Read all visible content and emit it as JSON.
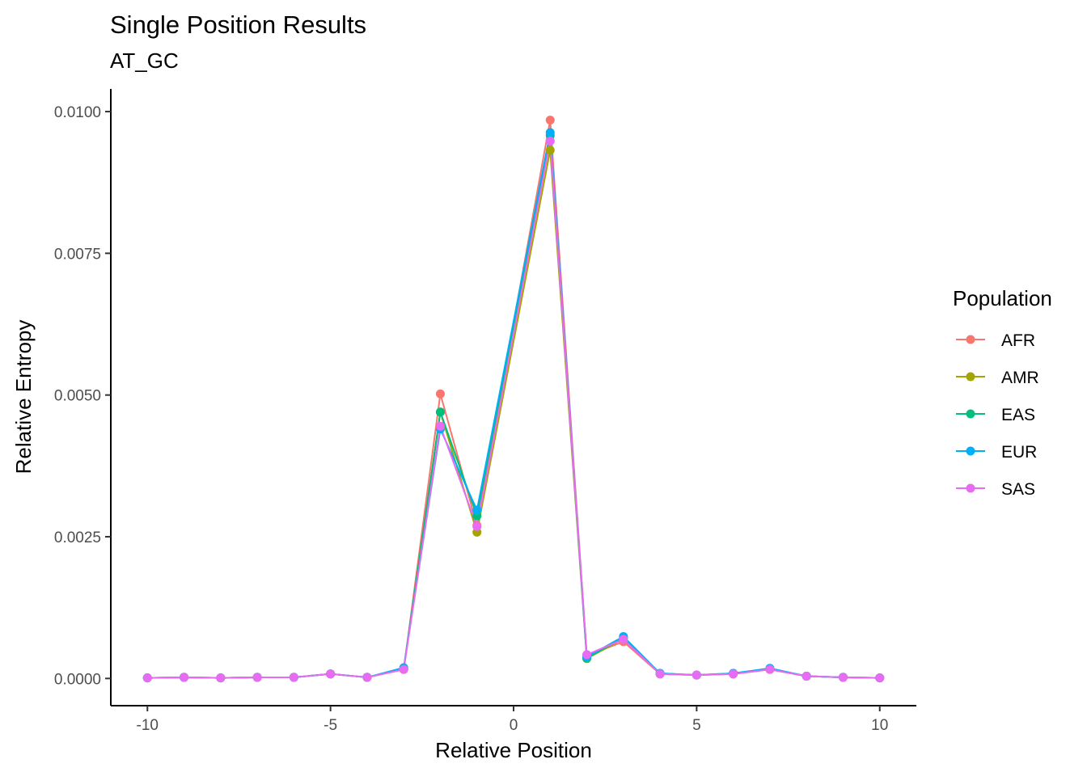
{
  "chart_data": {
    "type": "line",
    "title": "Single Position Results",
    "subtitle": "AT_GC",
    "xlabel": "Relative Position",
    "ylabel": "Relative Entropy",
    "xlim": [
      -11,
      11
    ],
    "ylim": [
      -0.00048,
      0.0104
    ],
    "x_ticks": [
      -10,
      -5,
      0,
      5,
      10
    ],
    "x_tick_labels": [
      "-10",
      "-5",
      "0",
      "5",
      "10"
    ],
    "y_ticks": [
      0,
      0.0025,
      0.005,
      0.0075,
      0.01
    ],
    "y_tick_labels": [
      "0.0000",
      "0.0025",
      "0.0050",
      "0.0075",
      "0.0100"
    ],
    "grid": false,
    "legend": {
      "title": "Population",
      "placement": "right"
    },
    "x": [
      -10,
      -9,
      -8,
      -7,
      -6,
      -5,
      -4,
      -3,
      -2,
      -1,
      1,
      2,
      3,
      4,
      5,
      6,
      7,
      8,
      9,
      10
    ],
    "series": [
      {
        "name": "AFR",
        "color": "#F8766D",
        "values": [
          1e-05,
          2e-05,
          1e-05,
          2e-05,
          2e-05,
          8e-05,
          2e-05,
          0.00016,
          0.00502,
          0.0027,
          0.00985,
          0.0004,
          0.00065,
          8e-05,
          6e-05,
          8e-05,
          0.00016,
          4e-05,
          2e-05,
          1e-05
        ]
      },
      {
        "name": "AMR",
        "color": "#A3A500",
        "values": [
          1e-05,
          2e-05,
          1e-05,
          2e-05,
          2e-05,
          8e-05,
          2e-05,
          0.00016,
          0.0047,
          0.00258,
          0.00932,
          0.00035,
          0.0007,
          8e-05,
          6e-05,
          8e-05,
          0.00016,
          4e-05,
          2e-05,
          1e-05
        ]
      },
      {
        "name": "EAS",
        "color": "#00BF7D",
        "values": [
          1e-05,
          2e-05,
          1e-05,
          2e-05,
          2e-05,
          8e-05,
          2e-05,
          0.00017,
          0.0047,
          0.00287,
          0.00958,
          0.00036,
          0.00072,
          9e-05,
          6e-05,
          9e-05,
          0.00017,
          4e-05,
          2e-05,
          1e-05
        ]
      },
      {
        "name": "EUR",
        "color": "#00B0F6",
        "values": [
          1e-05,
          2e-05,
          1e-05,
          2e-05,
          2e-05,
          8e-05,
          2e-05,
          0.00019,
          0.0044,
          0.00297,
          0.00963,
          0.00038,
          0.00074,
          9e-05,
          6e-05,
          9e-05,
          0.00018,
          4e-05,
          2e-05,
          1e-05
        ]
      },
      {
        "name": "SAS",
        "color": "#E76BF3",
        "values": [
          1e-05,
          2e-05,
          1e-05,
          2e-05,
          2e-05,
          8e-05,
          2e-05,
          0.00016,
          0.00445,
          0.00268,
          0.00948,
          0.00042,
          0.00069,
          8e-05,
          6e-05,
          8e-05,
          0.00016,
          4e-05,
          2e-05,
          1e-05
        ]
      }
    ]
  }
}
